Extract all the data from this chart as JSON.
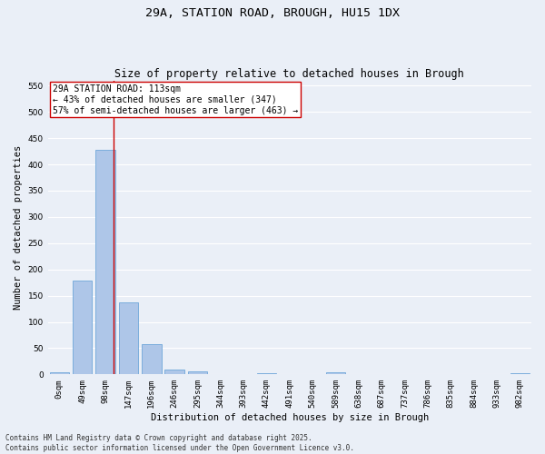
{
  "title_line1": "29A, STATION ROAD, BROUGH, HU15 1DX",
  "title_line2": "Size of property relative to detached houses in Brough",
  "xlabel": "Distribution of detached houses by size in Brough",
  "ylabel": "Number of detached properties",
  "categories": [
    "0sqm",
    "49sqm",
    "98sqm",
    "147sqm",
    "196sqm",
    "246sqm",
    "295sqm",
    "344sqm",
    "393sqm",
    "442sqm",
    "491sqm",
    "540sqm",
    "589sqm",
    "638sqm",
    "687sqm",
    "737sqm",
    "786sqm",
    "835sqm",
    "884sqm",
    "933sqm",
    "982sqm"
  ],
  "values": [
    4,
    178,
    428,
    137,
    57,
    9,
    6,
    0,
    0,
    3,
    0,
    0,
    4,
    0,
    0,
    0,
    0,
    0,
    0,
    0,
    3
  ],
  "bar_color": "#aec6e8",
  "bar_edge_color": "#5b9bd5",
  "vline_x": 2.35,
  "vline_color": "#cc0000",
  "annotation_text": "29A STATION ROAD: 113sqm\n← 43% of detached houses are smaller (347)\n57% of semi-detached houses are larger (463) →",
  "annotation_box_color": "#ffffff",
  "annotation_box_edge_color": "#cc0000",
  "ylim": [
    0,
    560
  ],
  "yticks": [
    0,
    50,
    100,
    150,
    200,
    250,
    300,
    350,
    400,
    450,
    500,
    550
  ],
  "background_color": "#eaeff7",
  "grid_color": "#ffffff",
  "footer_text": "Contains HM Land Registry data © Crown copyright and database right 2025.\nContains public sector information licensed under the Open Government Licence v3.0.",
  "title_fontsize": 9.5,
  "subtitle_fontsize": 8.5,
  "axis_label_fontsize": 7.5,
  "tick_fontsize": 6.5,
  "annotation_fontsize": 7,
  "footer_fontsize": 5.5
}
